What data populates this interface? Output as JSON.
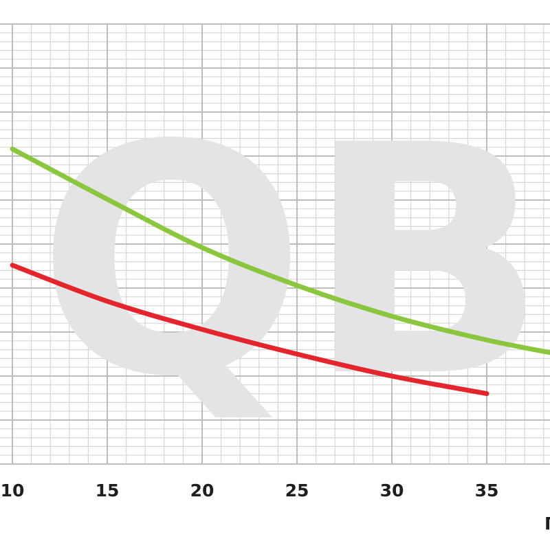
{
  "watermark": "QB",
  "corner_mark": "Γ",
  "chart_data": {
    "type": "line",
    "title": "",
    "xlabel": "",
    "ylabel": "",
    "grid": true,
    "xlim": [
      10,
      39
    ],
    "x_ticks": [
      10,
      15,
      20,
      25,
      30,
      35
    ],
    "series": [
      {
        "color": "#8cc63f",
        "x": [
          10,
          15,
          20,
          25,
          30,
          35,
          39
        ],
        "y": [
          35.8,
          30.1,
          24.6,
          20.3,
          16.8,
          14.1,
          12.4
        ]
      },
      {
        "color": "#e3262d",
        "x": [
          10,
          15,
          20,
          25,
          30,
          35
        ],
        "y": [
          22.6,
          18.5,
          15.3,
          12.5,
          10.0,
          8.0
        ]
      }
    ],
    "ylim": [
      0,
      50
    ]
  }
}
